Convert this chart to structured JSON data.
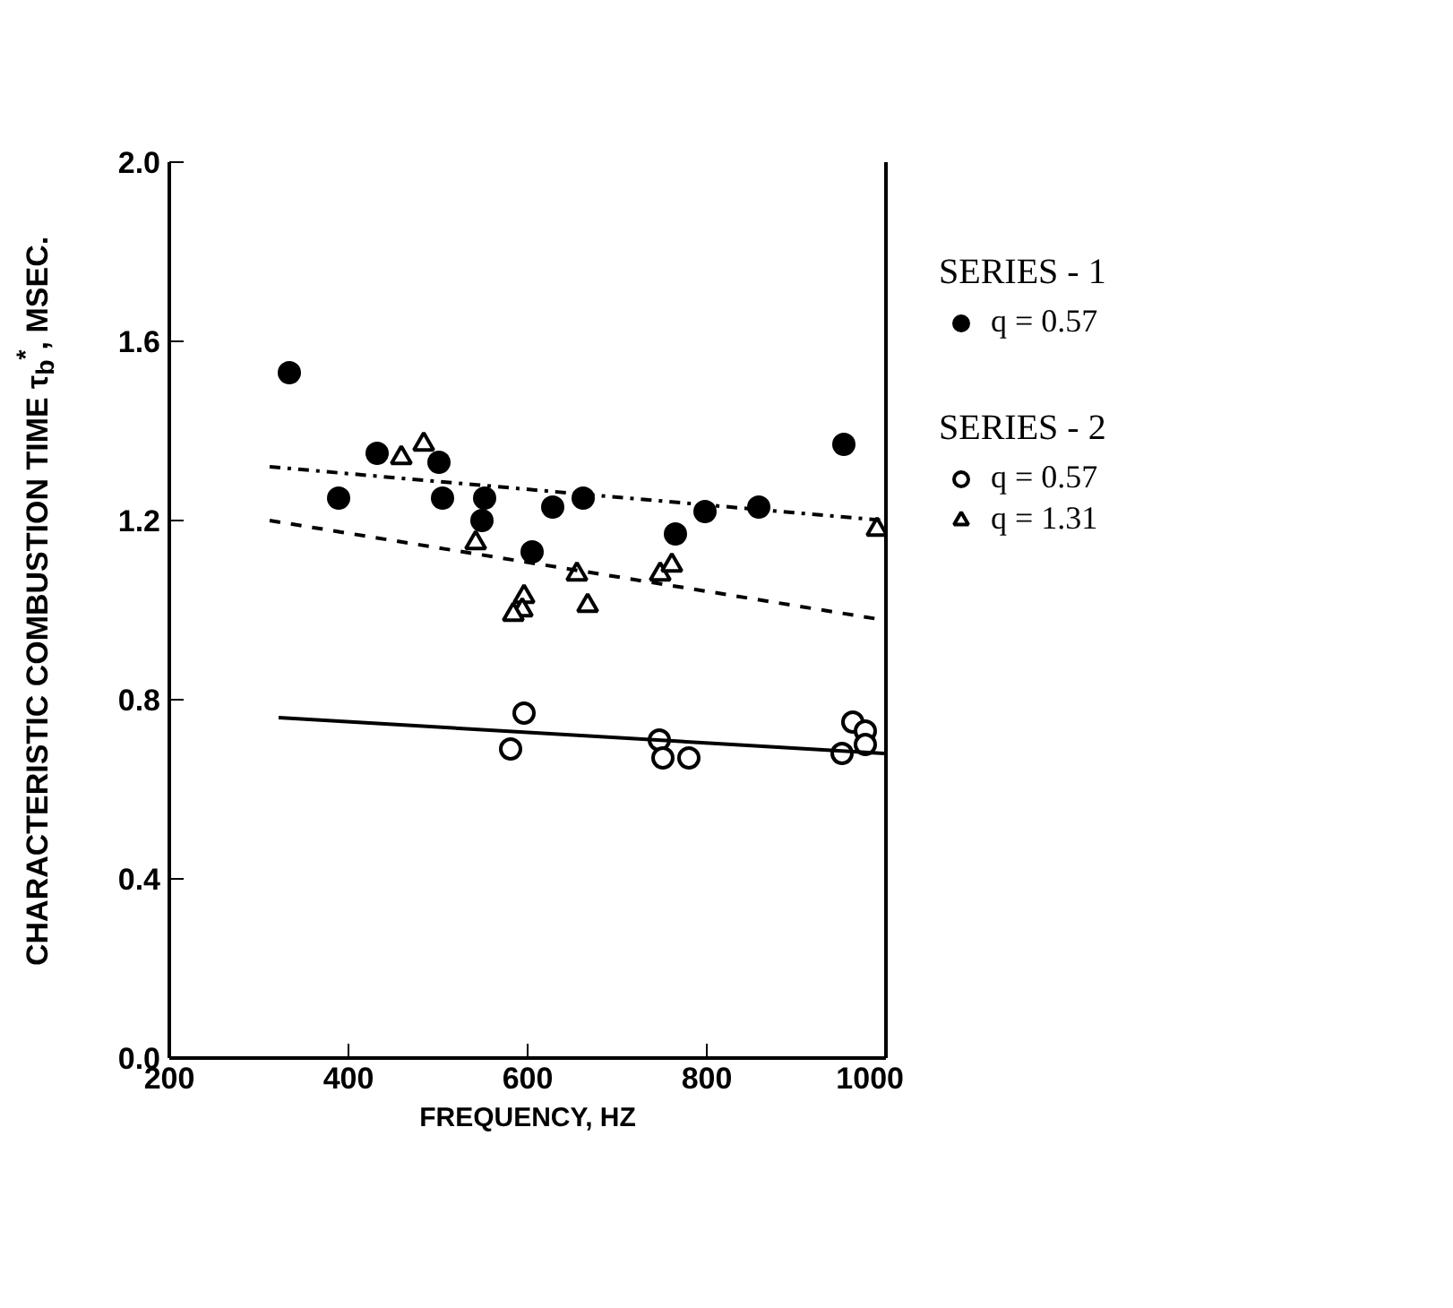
{
  "chart_data": {
    "type": "scatter",
    "xlabel": "FREQUENCY, HZ",
    "ylabel": "CHARACTERISTIC COMBUSTION TIME τ$_{b}$$^{*}$, MSEC.",
    "annotations": [
      "SERIES - 1",
      "SERIES - 2"
    ],
    "xlim": [
      200,
      1000
    ],
    "ylim": [
      0,
      2.0
    ],
    "xticks": [
      200,
      400,
      600,
      800,
      1000
    ],
    "yticks": [
      {
        "value": 0,
        "label": "0.0"
      },
      {
        "value": 0.4,
        "label": "0.4"
      },
      {
        "value": 0.8,
        "label": "0.8"
      },
      {
        "value": 1.2,
        "label": "1.2"
      },
      {
        "value": 1.6,
        "label": "1.6"
      },
      {
        "value": 2.0,
        "label": "2.0"
      }
    ],
    "grid": false,
    "legend": "right",
    "series": [
      {
        "name": "q = 0.57",
        "marker": "circle",
        "color": "#000000",
        "x": [
          334,
          432,
          501,
          389,
          505,
          552,
          549,
          628,
          662,
          605,
          798,
          858,
          765,
          953
        ],
        "values": [
          1.53,
          1.35,
          1.33,
          1.25,
          1.25,
          1.25,
          1.2,
          1.23,
          1.25,
          1.13,
          1.22,
          1.23,
          1.17,
          1.37
        ]
      },
      {
        "name": "q = 0.57",
        "marker": "circle",
        "color": "#ffffff",
        "x": [
          596,
          581,
          747,
          751,
          780,
          951,
          963,
          977,
          977
        ],
        "values": [
          0.77,
          0.69,
          0.71,
          0.67,
          0.67,
          0.68,
          0.75,
          0.73,
          0.7
        ]
      },
      {
        "name": "q = 1.31",
        "marker": "triangle",
        "color": "#ffffff",
        "x": [
          459,
          484,
          542,
          990,
          655,
          748,
          761,
          667,
          596,
          594,
          584
        ],
        "values": [
          1.34,
          1.37,
          1.15,
          1.18,
          1.08,
          1.08,
          1.1,
          1.01,
          1.03,
          1.0,
          0.99
        ]
      },
      {
        "type": "line",
        "line_style": "dashdot",
        "color": "#000000",
        "x": [
          312,
          998
        ],
        "values": [
          1.32,
          1.2
        ]
      },
      {
        "type": "line",
        "line_style": "dashed",
        "color": "#000000",
        "x": [
          312,
          991
        ],
        "values": [
          1.2,
          0.98
        ]
      },
      {
        "type": "line",
        "line_style": "solid",
        "color": "#000000",
        "x": [
          322,
          998
        ],
        "values": [
          0.76,
          0.68
        ]
      }
    ]
  }
}
